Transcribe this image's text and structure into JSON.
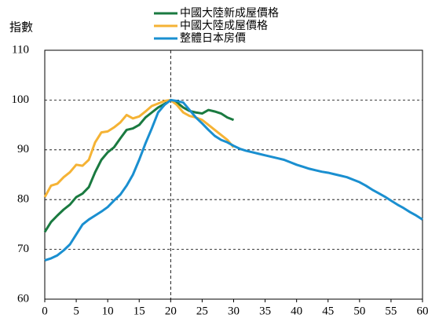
{
  "chart_data": {
    "type": "line",
    "ylabel": "指數",
    "x": [
      0,
      1,
      2,
      3,
      4,
      5,
      6,
      7,
      8,
      9,
      10,
      11,
      12,
      13,
      14,
      15,
      16,
      17,
      18,
      19,
      20,
      21,
      22,
      23,
      24,
      25,
      26,
      27,
      28,
      29,
      30,
      31,
      32,
      33,
      34,
      35,
      36,
      37,
      38,
      39,
      40,
      41,
      42,
      43,
      44,
      45,
      46,
      47,
      48,
      49,
      50,
      51,
      52,
      53,
      54,
      55,
      56,
      57,
      58,
      59,
      60
    ],
    "series": [
      {
        "name": "中國大陸新成屋價格",
        "color": "#1a7a40",
        "values": [
          73.5,
          75.5,
          76.8,
          78,
          79,
          80.5,
          81.2,
          82.5,
          85.5,
          88,
          89.5,
          90.5,
          92.3,
          94,
          94.3,
          95,
          96.5,
          97.5,
          98.5,
          99.2,
          100,
          99.5,
          98.5,
          97.8,
          97.5,
          97.3,
          98,
          97.7,
          97.3,
          96.5,
          96,
          null,
          null,
          null,
          null,
          null,
          null,
          null,
          null,
          null,
          null,
          null,
          null,
          null,
          null,
          null,
          null,
          null,
          null,
          null,
          null,
          null,
          null,
          null,
          null,
          null,
          null,
          null,
          null,
          null,
          null
        ]
      },
      {
        "name": "中國大陸成屋價格",
        "color": "#f5b335",
        "values": [
          80.5,
          82.8,
          83.2,
          84.5,
          85.5,
          87,
          86.8,
          88,
          91.5,
          93.5,
          93.7,
          94.5,
          95.5,
          97,
          96.3,
          96.7,
          97.7,
          98.8,
          99.3,
          99.8,
          100,
          99,
          97.5,
          96.8,
          96.5,
          96,
          95,
          94,
          93,
          92,
          90.5,
          null,
          null,
          null,
          null,
          null,
          null,
          null,
          null,
          null,
          null,
          null,
          null,
          null,
          null,
          null,
          null,
          null,
          null,
          null,
          null,
          null,
          null,
          null,
          null,
          null,
          null,
          null,
          null,
          null,
          null
        ]
      },
      {
        "name": "整體日本房價",
        "color": "#1a8fd0",
        "values": [
          67.8,
          68.2,
          68.8,
          69.8,
          71,
          73,
          75,
          76,
          76.8,
          77.6,
          78.5,
          79.8,
          81,
          82.8,
          85,
          88,
          91.3,
          94.3,
          97.5,
          99,
          100,
          99.8,
          99.5,
          98,
          96.5,
          95.3,
          94,
          92.8,
          92,
          91.5,
          90.8,
          90.2,
          89.8,
          89.5,
          89.2,
          88.9,
          88.6,
          88.3,
          88,
          87.5,
          87,
          86.6,
          86.2,
          85.9,
          85.6,
          85.4,
          85.1,
          84.8,
          84.5,
          84,
          83.5,
          82.8,
          82,
          81.3,
          80.6,
          79.8,
          79,
          78.3,
          77.5,
          76.8,
          76
        ]
      }
    ],
    "xlim": [
      0,
      60
    ],
    "xticks": [
      0,
      5,
      10,
      15,
      20,
      25,
      30,
      35,
      40,
      45,
      50,
      55,
      60
    ],
    "ylim": [
      60,
      110
    ],
    "yticks": [
      60,
      70,
      80,
      90,
      100,
      110
    ],
    "grid": true,
    "vline_x": 20,
    "legend": "top"
  }
}
